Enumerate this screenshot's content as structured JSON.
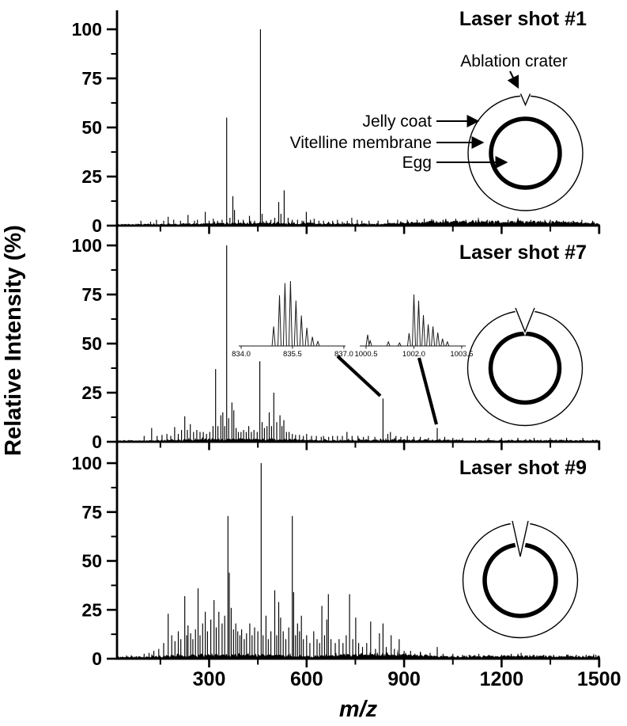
{
  "figure": {
    "ylabel": "Relative Intensity (%)",
    "xlabel": "m/z",
    "colors": {
      "ink": "#000000",
      "background": "#ffffff",
      "inset_ink": "#1a1a1a"
    }
  },
  "chart_data": [
    {
      "type": "line",
      "subtype": "mass-spectrum-sticks",
      "title": "Laser shot #1",
      "xlim": [
        16,
        1515
      ],
      "ylim": [
        0,
        110
      ],
      "xticks": [
        300,
        600,
        900,
        1200,
        1500
      ],
      "xtick_minor_step": 150,
      "yticks": [
        100,
        75,
        50,
        25,
        0
      ],
      "yticks_minor": [
        12.5,
        37.5,
        62.5,
        87.5
      ],
      "peaks": [
        [
          90,
          2.5
        ],
        [
          120,
          2
        ],
        [
          138,
          3
        ],
        [
          160,
          2.5
        ],
        [
          174,
          4.5
        ],
        [
          191,
          3
        ],
        [
          212,
          2.5
        ],
        [
          235,
          5.5
        ],
        [
          255,
          2.5
        ],
        [
          264,
          3
        ],
        [
          288,
          7
        ],
        [
          300,
          2.5
        ],
        [
          313,
          3.5
        ],
        [
          326,
          2.5
        ],
        [
          340,
          3
        ],
        [
          354,
          55
        ],
        [
          364,
          4
        ],
        [
          373,
          15
        ],
        [
          378,
          8
        ],
        [
          390,
          3
        ],
        [
          405,
          3
        ],
        [
          424,
          5
        ],
        [
          440,
          2.5
        ],
        [
          458,
          100
        ],
        [
          463,
          6
        ],
        [
          476,
          2.5
        ],
        [
          490,
          3
        ],
        [
          502,
          4
        ],
        [
          514,
          12
        ],
        [
          521,
          6
        ],
        [
          531,
          18
        ],
        [
          543,
          4
        ],
        [
          556,
          3
        ],
        [
          572,
          3
        ],
        [
          586,
          2.5
        ],
        [
          599,
          7
        ],
        [
          612,
          3
        ],
        [
          623,
          3.5
        ],
        [
          638,
          2.5
        ],
        [
          652,
          2.5
        ],
        [
          668,
          2
        ],
        [
          680,
          2.5
        ],
        [
          695,
          3
        ],
        [
          710,
          2
        ],
        [
          725,
          2.5
        ],
        [
          739,
          4
        ],
        [
          756,
          3
        ],
        [
          770,
          2.5
        ],
        [
          792,
          2.5
        ],
        [
          820,
          2.5
        ],
        [
          850,
          3
        ],
        [
          880,
          3
        ],
        [
          910,
          3
        ],
        [
          940,
          3
        ],
        [
          962,
          3.5
        ],
        [
          990,
          3
        ],
        [
          1020,
          3
        ],
        [
          1059,
          3.5
        ],
        [
          1090,
          3
        ],
        [
          1120,
          2.5
        ],
        [
          1156,
          3
        ],
        [
          1190,
          2.5
        ],
        [
          1220,
          3
        ],
        [
          1253,
          2.5
        ],
        [
          1290,
          3
        ],
        [
          1320,
          2.5
        ],
        [
          1350,
          3
        ],
        [
          1390,
          2.5
        ],
        [
          1420,
          2.5
        ],
        [
          1447,
          3
        ],
        [
          1480,
          2.5
        ]
      ],
      "noise": {
        "base": 1.2,
        "humps": [
          [
            160,
            820,
            0.7
          ],
          [
            820,
            1515,
            2.1
          ]
        ]
      },
      "annotations": {
        "ablation_crater": "Ablation crater",
        "jelly_coat": "Jelly coat",
        "vitelline_membrane": "Vitelline membrane",
        "egg": "Egg"
      },
      "egg_diagram": {
        "crater": "shallow notch in jelly coat"
      }
    },
    {
      "type": "line",
      "subtype": "mass-spectrum-sticks",
      "title": "Laser shot #7",
      "xlim": [
        16,
        1515
      ],
      "ylim": [
        0,
        110
      ],
      "xticks": [
        300,
        600,
        900,
        1200,
        1500
      ],
      "xtick_minor_step": 150,
      "yticks": [
        100,
        75,
        50,
        25,
        0
      ],
      "yticks_minor": [
        12.5,
        37.5,
        62.5,
        87.5
      ],
      "peaks": [
        [
          100,
          3
        ],
        [
          123,
          7
        ],
        [
          140,
          3
        ],
        [
          155,
          3.5
        ],
        [
          170,
          4
        ],
        [
          182,
          3
        ],
        [
          194,
          7.5
        ],
        [
          205,
          4
        ],
        [
          215,
          6
        ],
        [
          225,
          13
        ],
        [
          233,
          6
        ],
        [
          242,
          9
        ],
        [
          252,
          5
        ],
        [
          262,
          6
        ],
        [
          272,
          5
        ],
        [
          282,
          5
        ],
        [
          292,
          4
        ],
        [
          302,
          5
        ],
        [
          312,
          8
        ],
        [
          320,
          37
        ],
        [
          327,
          8
        ],
        [
          336,
          13.5
        ],
        [
          342,
          15
        ],
        [
          348,
          8
        ],
        [
          354,
          100
        ],
        [
          360,
          12
        ],
        [
          370,
          20
        ],
        [
          376,
          16
        ],
        [
          383,
          7
        ],
        [
          390,
          5
        ],
        [
          398,
          5
        ],
        [
          406,
          6
        ],
        [
          414,
          5
        ],
        [
          422,
          8
        ],
        [
          430,
          5
        ],
        [
          438,
          6
        ],
        [
          448,
          5
        ],
        [
          456,
          41
        ],
        [
          463,
          10
        ],
        [
          470,
          7
        ],
        [
          478,
          8
        ],
        [
          485,
          15
        ],
        [
          492,
          8
        ],
        [
          499,
          25
        ],
        [
          508,
          10
        ],
        [
          518,
          13.5
        ],
        [
          524,
          8
        ],
        [
          530,
          11
        ],
        [
          538,
          5
        ],
        [
          546,
          5
        ],
        [
          556,
          4
        ],
        [
          566,
          3.5
        ],
        [
          578,
          3.5
        ],
        [
          590,
          3
        ],
        [
          600,
          4
        ],
        [
          615,
          3
        ],
        [
          630,
          3
        ],
        [
          645,
          2.5
        ],
        [
          652,
          3
        ],
        [
          668,
          2.5
        ],
        [
          680,
          3
        ],
        [
          695,
          3
        ],
        [
          710,
          3
        ],
        [
          724,
          5
        ],
        [
          740,
          3
        ],
        [
          758,
          3
        ],
        [
          775,
          2.5
        ],
        [
          790,
          3
        ],
        [
          810,
          2.5
        ],
        [
          835,
          22
        ],
        [
          850,
          4
        ],
        [
          858,
          5
        ],
        [
          875,
          3
        ],
        [
          890,
          2.5
        ],
        [
          910,
          3
        ],
        [
          930,
          2.5
        ],
        [
          950,
          2.5
        ],
        [
          975,
          2
        ],
        [
          1002,
          7
        ],
        [
          1025,
          2.5
        ],
        [
          1050,
          2
        ],
        [
          1080,
          2
        ],
        [
          1120,
          2
        ],
        [
          1160,
          2
        ],
        [
          1200,
          2
        ],
        [
          1250,
          2
        ],
        [
          1300,
          2
        ],
        [
          1350,
          2
        ],
        [
          1400,
          2
        ],
        [
          1450,
          2
        ]
      ],
      "noise": {
        "base": 1.0,
        "humps": [
          [
            140,
            660,
            1.1
          ],
          [
            660,
            1100,
            0.5
          ],
          [
            1100,
            1515,
            0.3
          ]
        ]
      },
      "insets": [
        {
          "xlim": [
            834.0,
            837.0
          ],
          "xticks": [
            834.0,
            835.5,
            837.0
          ],
          "xtick_labels": [
            "834.0",
            "835.5",
            "837.0"
          ],
          "peaks": [
            [
              834.95,
              30
            ],
            [
              835.12,
              78
            ],
            [
              835.28,
              97
            ],
            [
              835.44,
              100
            ],
            [
              835.6,
              70
            ],
            [
              835.76,
              47
            ],
            [
              835.92,
              28
            ],
            [
              836.08,
              14
            ],
            [
              836.24,
              7
            ]
          ],
          "links_to_mz": 835
        },
        {
          "xlim": [
            1000.3,
            1003.6
          ],
          "xticks": [
            1000.5,
            1002.0,
            1003.5
          ],
          "xtick_labels": [
            "1000.5",
            "1002.0",
            "1003.5"
          ],
          "peaks": [
            [
              1000.55,
              22
            ],
            [
              1000.63,
              10
            ],
            [
              1001.2,
              8
            ],
            [
              1001.55,
              6
            ],
            [
              1001.85,
              25
            ],
            [
              1002.0,
              100
            ],
            [
              1002.15,
              88
            ],
            [
              1002.3,
              60
            ],
            [
              1002.45,
              42
            ],
            [
              1002.6,
              38
            ],
            [
              1002.75,
              26
            ],
            [
              1002.9,
              14
            ],
            [
              1003.05,
              8
            ]
          ],
          "links_to_mz": 1002
        }
      ],
      "egg_diagram": {
        "crater": "crater through jelly coat reaching vitelline membrane"
      }
    },
    {
      "type": "line",
      "subtype": "mass-spectrum-sticks",
      "title": "Laser shot #9",
      "xlim": [
        16,
        1515
      ],
      "ylim": [
        0,
        110
      ],
      "xticks": [
        300,
        600,
        900,
        1200,
        1500
      ],
      "xtick_minor_step": 150,
      "yticks": [
        100,
        75,
        50,
        25,
        0
      ],
      "yticks_minor": [
        12.5,
        37.5,
        62.5,
        87.5
      ],
      "peaks": [
        [
          100,
          2.5
        ],
        [
          115,
          3
        ],
        [
          130,
          4
        ],
        [
          145,
          5
        ],
        [
          160,
          8
        ],
        [
          174,
          23
        ],
        [
          185,
          12
        ],
        [
          195,
          9
        ],
        [
          205,
          14
        ],
        [
          213,
          10
        ],
        [
          225,
          32
        ],
        [
          231,
          12
        ],
        [
          235,
          17
        ],
        [
          243,
          13
        ],
        [
          250,
          10
        ],
        [
          258,
          15
        ],
        [
          266,
          36
        ],
        [
          272,
          12
        ],
        [
          280,
          18
        ],
        [
          288,
          24
        ],
        [
          295,
          14
        ],
        [
          305,
          20
        ],
        [
          315,
          30
        ],
        [
          322,
          16
        ],
        [
          330,
          24
        ],
        [
          340,
          18
        ],
        [
          348,
          22
        ],
        [
          358,
          73
        ],
        [
          362,
          44
        ],
        [
          368,
          26
        ],
        [
          375,
          15
        ],
        [
          382,
          18
        ],
        [
          388,
          14
        ],
        [
          395,
          12
        ],
        [
          400,
          15
        ],
        [
          408,
          10
        ],
        [
          415,
          13
        ],
        [
          425,
          18
        ],
        [
          432,
          12
        ],
        [
          440,
          16
        ],
        [
          450,
          14
        ],
        [
          460,
          100
        ],
        [
          466,
          12
        ],
        [
          475,
          22
        ],
        [
          482,
          10
        ],
        [
          490,
          14
        ],
        [
          502,
          35
        ],
        [
          508,
          12
        ],
        [
          514,
          29
        ],
        [
          520,
          21
        ],
        [
          528,
          14
        ],
        [
          536,
          10
        ],
        [
          545,
          16
        ],
        [
          556,
          73
        ],
        [
          560,
          34
        ],
        [
          566,
          12
        ],
        [
          572,
          18
        ],
        [
          578,
          14
        ],
        [
          584,
          22
        ],
        [
          590,
          10
        ],
        [
          600,
          12
        ],
        [
          610,
          8
        ],
        [
          622,
          14
        ],
        [
          632,
          10
        ],
        [
          640,
          8
        ],
        [
          647,
          27
        ],
        [
          655,
          12
        ],
        [
          662,
          20
        ],
        [
          667,
          33
        ],
        [
          675,
          10
        ],
        [
          688,
          8
        ],
        [
          700,
          10
        ],
        [
          712,
          8
        ],
        [
          722,
          12
        ],
        [
          732,
          33
        ],
        [
          742,
          10
        ],
        [
          751,
          21
        ],
        [
          760,
          8
        ],
        [
          772,
          6
        ],
        [
          785,
          8
        ],
        [
          797,
          19
        ],
        [
          812,
          5
        ],
        [
          824,
          13
        ],
        [
          835,
          18
        ],
        [
          845,
          6
        ],
        [
          860,
          12
        ],
        [
          870,
          5
        ],
        [
          885,
          10
        ],
        [
          900,
          4
        ],
        [
          920,
          4
        ],
        [
          950,
          3.5
        ],
        [
          980,
          3
        ],
        [
          1002,
          6
        ],
        [
          1020,
          2.5
        ],
        [
          1050,
          2.5
        ],
        [
          1080,
          2
        ],
        [
          1100,
          2
        ],
        [
          1130,
          2.5
        ],
        [
          1160,
          2
        ],
        [
          1200,
          2
        ],
        [
          1230,
          2.5
        ],
        [
          1260,
          3
        ],
        [
          1300,
          2
        ],
        [
          1330,
          2
        ],
        [
          1360,
          2
        ],
        [
          1400,
          2
        ],
        [
          1430,
          2
        ],
        [
          1460,
          2
        ],
        [
          1490,
          2
        ]
      ],
      "noise": {
        "base": 1.4,
        "humps": [
          [
            120,
            620,
            1.6
          ],
          [
            620,
            1030,
            2.1
          ],
          [
            1030,
            1515,
            0.8
          ]
        ]
      },
      "egg_diagram": {
        "crater": "crater penetrating vitelline membrane"
      }
    }
  ]
}
